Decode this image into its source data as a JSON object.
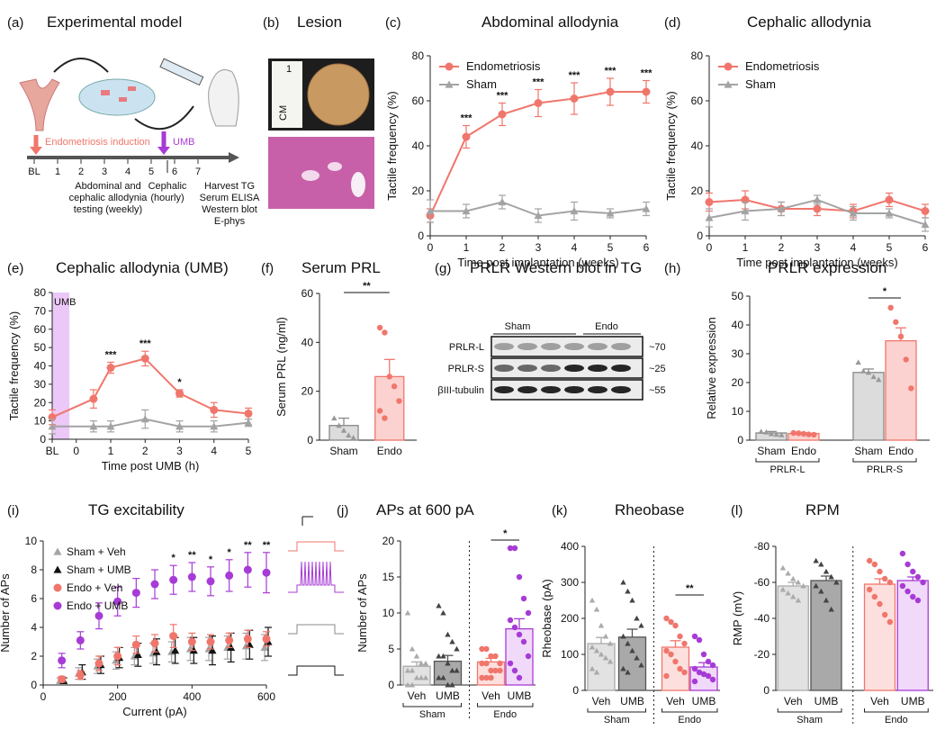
{
  "colors": {
    "endo": "#f0766c",
    "sham": "#a3a3a3",
    "umb": "#a73bd6",
    "black": "#111111",
    "lav": "#ebc8f7",
    "pink": "#f59a94"
  },
  "panels": {
    "a": {
      "label": "(a)",
      "title": "Experimental model",
      "induction": "Endometriosis induction",
      "umb": "UMB",
      "timeline": [
        "BL",
        "1",
        "2",
        "3",
        "4",
        "5",
        "6",
        "7"
      ],
      "testing": [
        "Abdominal and",
        "cephalic allodynia",
        "testing (weekly)"
      ],
      "cephalic": [
        "Cephalic",
        "(hourly)"
      ],
      "harvest": [
        "Harvest TG",
        "Serum ELISA",
        "Western blot",
        "E-phys"
      ]
    },
    "b": {
      "label": "(b)",
      "title": "Lesion",
      "ruler": "CM",
      "ruler_num": "1"
    },
    "c": {
      "label": "(c)",
      "title": "Abdominal allodynia"
    },
    "d": {
      "label": "(d)",
      "title": "Cephalic allodynia"
    },
    "e": {
      "label": "(e)",
      "title": "Cephalic allodynia (UMB)",
      "umb_box": "UMB"
    },
    "f": {
      "label": "(f)",
      "title": "Serum PRL"
    },
    "g": {
      "label": "(g)",
      "title": "PRLR Western blot in TG",
      "groups": [
        "Sham",
        "Endo"
      ],
      "rows": [
        {
          "name": "PRLR-L",
          "kda": "~70"
        },
        {
          "name": "PRLR-S",
          "kda": "~25"
        },
        {
          "name": "βIII-tubulin",
          "kda": "~55"
        }
      ]
    },
    "h": {
      "label": "(h)",
      "title": "PRLR expression"
    },
    "i": {
      "label": "(i)",
      "title": "TG excitability"
    },
    "j": {
      "label": "(j)",
      "title": "APs at 600 pA"
    },
    "k": {
      "label": "(k)",
      "title": "Rheobase"
    },
    "l": {
      "label": "(l)",
      "title": "RPM"
    }
  },
  "chart_data": [
    {
      "id": "c",
      "type": "line",
      "title": "Abdominal allodynia",
      "xlabel": "Time post implantation (weeks)",
      "ylabel": "Tactile frequency (%)",
      "xlim": [
        0,
        6
      ],
      "ylim": [
        0,
        80
      ],
      "xticks": [
        0,
        1,
        2,
        3,
        4,
        5,
        6
      ],
      "yticks": [
        0,
        20,
        40,
        60,
        80
      ],
      "legend": "top-left",
      "series": [
        {
          "name": "Endometriosis",
          "x": [
            0,
            1,
            2,
            3,
            4,
            5,
            6
          ],
          "values": [
            9,
            44,
            54,
            59,
            61,
            64,
            64
          ],
          "err": [
            3,
            5,
            5,
            6,
            7,
            6,
            5
          ]
        },
        {
          "name": "Sham",
          "x": [
            0,
            1,
            2,
            3,
            4,
            5,
            6
          ],
          "values": [
            11,
            11,
            15,
            9,
            11,
            10,
            12
          ],
          "err": [
            5,
            3,
            3,
            3,
            4,
            2,
            3
          ]
        }
      ],
      "annotations": [
        {
          "x": 1,
          "text": "***"
        },
        {
          "x": 2,
          "text": "***"
        },
        {
          "x": 3,
          "text": "***"
        },
        {
          "x": 4,
          "text": "***"
        },
        {
          "x": 5,
          "text": "***"
        },
        {
          "x": 6,
          "text": "***"
        }
      ]
    },
    {
      "id": "d",
      "type": "line",
      "title": "Cephalic allodynia",
      "xlabel": "Time post implantation (weeks)",
      "ylabel": "Tactile frequency (%)",
      "xlim": [
        0,
        6
      ],
      "ylim": [
        0,
        80
      ],
      "xticks": [
        0,
        1,
        2,
        3,
        4,
        5,
        6
      ],
      "yticks": [
        0,
        20,
        40,
        60,
        80
      ],
      "legend": "top-left",
      "series": [
        {
          "name": "Endometriosis",
          "x": [
            0,
            1,
            2,
            3,
            4,
            5,
            6
          ],
          "values": [
            15,
            16,
            12,
            12,
            11,
            16,
            11
          ],
          "err": [
            4,
            4,
            3,
            3,
            3,
            3,
            3
          ]
        },
        {
          "name": "Sham",
          "x": [
            0,
            1,
            2,
            3,
            4,
            5,
            6
          ],
          "values": [
            8,
            11,
            12,
            16,
            10,
            10,
            5
          ],
          "err": [
            4,
            4,
            3,
            2,
            3,
            2,
            3
          ]
        }
      ],
      "annotations": []
    },
    {
      "id": "e",
      "type": "line",
      "title": "Cephalic allodynia (UMB)",
      "xlabel": "Time post UMB (h)",
      "ylabel": "Tactile frequency (%)",
      "xlim": [
        -0.7,
        5
      ],
      "ylim": [
        0,
        80
      ],
      "xticks": [
        -0.7,
        0,
        1,
        2,
        3,
        4,
        5
      ],
      "xticklabels": [
        "BL",
        "0",
        "1",
        "2",
        "3",
        "4",
        "5"
      ],
      "yticks": [
        0,
        10,
        20,
        30,
        40,
        50,
        60,
        70,
        80
      ],
      "series": [
        {
          "name": "Endometriosis",
          "x": [
            -0.7,
            0.5,
            1,
            2,
            3,
            4,
            5
          ],
          "values": [
            12,
            22,
            39,
            44,
            25,
            16,
            14
          ],
          "err": [
            4,
            5,
            3,
            4,
            2,
            4,
            3
          ]
        },
        {
          "name": "Sham",
          "x": [
            -0.7,
            0.5,
            1,
            2,
            3,
            4,
            5
          ],
          "values": [
            7,
            7,
            7,
            11,
            7,
            7,
            9
          ],
          "err": [
            4,
            3,
            3,
            5,
            3,
            3,
            2
          ]
        }
      ],
      "annotations": [
        {
          "x": 1,
          "text": "***"
        },
        {
          "x": 2,
          "text": "***"
        },
        {
          "x": 3,
          "text": "*"
        }
      ]
    },
    {
      "id": "f",
      "type": "bar",
      "title": "Serum PRL",
      "ylabel": "Serum PRL (ng/ml)",
      "ylim": [
        0,
        60
      ],
      "yticks": [
        0,
        20,
        40,
        60
      ],
      "categories": [
        "Sham",
        "Endo"
      ],
      "values": [
        6,
        26
      ],
      "err": [
        3,
        7
      ],
      "points": [
        [
          9,
          6,
          4,
          2,
          1
        ],
        [
          46,
          44,
          26,
          22,
          16,
          12,
          9
        ]
      ],
      "sig": "**"
    },
    {
      "id": "h",
      "type": "bar",
      "title": "PRLR expression",
      "ylabel": "Relative expression",
      "ylim": [
        0,
        50
      ],
      "yticks": [
        0,
        10,
        20,
        30,
        40,
        50
      ],
      "categories": [
        "Sham",
        "Endo",
        "Sham",
        "Endo"
      ],
      "groups": [
        "PRLR-L",
        "PRLR-S"
      ],
      "values": [
        2.5,
        2.3,
        23.5,
        34.5
      ],
      "err": [
        0.5,
        0.3,
        1.2,
        4.5
      ],
      "points": [
        [
          3,
          2.8,
          2.2,
          2,
          1.8
        ],
        [
          2.5,
          2.4,
          2.2,
          2,
          1.9
        ],
        [
          27,
          24,
          23.5,
          22,
          21
        ],
        [
          46,
          41,
          36,
          28,
          18
        ]
      ],
      "sig": "*"
    },
    {
      "id": "i",
      "type": "line",
      "title": "TG excitability",
      "xlabel": "Current (pA)",
      "ylabel": "Number of APs",
      "xlim": [
        0,
        600
      ],
      "ylim": [
        0,
        10
      ],
      "xticks": [
        0,
        200,
        400,
        600
      ],
      "yticks": [
        0,
        2,
        4,
        6,
        8,
        10
      ],
      "legend": "top-left",
      "series": [
        {
          "name": "Sham + Veh",
          "x": [
            50,
            100,
            150,
            200,
            250,
            300,
            350,
            400,
            450,
            500,
            550,
            600
          ],
          "values": [
            0.3,
            0.8,
            1.3,
            1.7,
            2,
            2.2,
            2.3,
            2.5,
            2.5,
            2.6,
            2.7,
            2.6
          ],
          "err": [
            0.2,
            0.4,
            0.5,
            0.6,
            0.6,
            0.7,
            0.7,
            0.8,
            0.8,
            0.8,
            0.9,
            0.9
          ]
        },
        {
          "name": "Sham + UMB",
          "x": [
            50,
            100,
            150,
            200,
            250,
            300,
            350,
            400,
            450,
            500,
            550,
            600
          ],
          "values": [
            0.3,
            0.9,
            1.4,
            1.9,
            2.1,
            2.3,
            2.4,
            2.4,
            2.4,
            2.6,
            2.8,
            3
          ],
          "err": [
            0.2,
            0.5,
            0.6,
            0.7,
            0.8,
            0.9,
            0.9,
            0.9,
            1,
            1,
            1,
            1
          ]
        },
        {
          "name": "Endo + Veh",
          "x": [
            50,
            100,
            150,
            200,
            250,
            300,
            350,
            400,
            450,
            500,
            550,
            600
          ],
          "values": [
            0.4,
            0.7,
            1.5,
            2,
            2.8,
            2.9,
            3.4,
            3,
            3,
            3.1,
            3.2,
            3.2
          ],
          "err": [
            0.2,
            0.3,
            0.5,
            0.6,
            0.6,
            0.6,
            0.8,
            0.6,
            0.5,
            0.5,
            0.6,
            0.5
          ]
        },
        {
          "name": "Endo + UMB",
          "x": [
            50,
            100,
            150,
            200,
            250,
            300,
            350,
            400,
            450,
            500,
            550,
            600
          ],
          "values": [
            1.7,
            3.1,
            4.8,
            5.8,
            6.4,
            7,
            7.3,
            7.5,
            7.2,
            7.6,
            8,
            7.8
          ],
          "err": [
            0.5,
            0.6,
            0.9,
            1,
            1,
            1,
            1,
            1,
            1,
            1.1,
            1.2,
            1.4
          ]
        }
      ],
      "annotations": [
        {
          "x": 350,
          "text": "*"
        },
        {
          "x": 400,
          "text": "**"
        },
        {
          "x": 450,
          "text": "*"
        },
        {
          "x": 500,
          "text": "*"
        },
        {
          "x": 550,
          "text": "**"
        },
        {
          "x": 600,
          "text": "**"
        }
      ]
    },
    {
      "id": "j",
      "type": "bar",
      "title": "APs at 600 pA",
      "ylabel": "Number of APs",
      "ylim": [
        0,
        20
      ],
      "yticks": [
        0,
        5,
        10,
        15,
        20
      ],
      "categories": [
        "Veh",
        "UMB",
        "Veh",
        "UMB"
      ],
      "groups": [
        "Sham",
        "Endo"
      ],
      "values": [
        2.6,
        3.3,
        3.2,
        7.8
      ],
      "err": [
        0.6,
        0.8,
        0.5,
        1.4
      ],
      "points": [
        [
          10,
          5,
          4,
          3,
          3,
          2,
          2,
          1,
          1,
          1,
          0,
          0
        ],
        [
          11,
          10,
          7,
          6,
          5,
          4,
          4,
          3,
          2,
          2,
          1,
          1,
          0,
          0
        ],
        [
          5,
          5,
          4,
          4,
          3,
          3,
          3,
          2,
          2,
          2,
          1,
          1,
          1
        ],
        [
          19,
          19,
          15,
          12,
          10,
          9,
          8,
          7,
          6,
          4,
          3,
          2,
          1
        ]
      ],
      "sig": "*"
    },
    {
      "id": "k",
      "type": "bar",
      "title": "Rheobase",
      "ylabel": "Rheobase (pA)",
      "ylim": [
        0,
        400
      ],
      "yticks": [
        0,
        100,
        200,
        300,
        400
      ],
      "categories": [
        "Veh",
        "UMB",
        "Veh",
        "UMB"
      ],
      "groups": [
        "Sham",
        "Endo"
      ],
      "values": [
        130,
        148,
        120,
        65
      ],
      "err": [
        17,
        22,
        18,
        12
      ],
      "points": [
        [
          250,
          225,
          180,
          150,
          130,
          120,
          110,
          100,
          90,
          80,
          60,
          50
        ],
        [
          300,
          275,
          250,
          200,
          180,
          150,
          130,
          110,
          90,
          70,
          60,
          50
        ],
        [
          200,
          190,
          180,
          150,
          130,
          110,
          100,
          80,
          60,
          50,
          40
        ],
        [
          150,
          140,
          100,
          80,
          70,
          60,
          50,
          45,
          40,
          30,
          25
        ]
      ],
      "sig": "**"
    },
    {
      "id": "l",
      "type": "bar",
      "title": "RPM",
      "ylabel": "RMP (mV)",
      "ylim": [
        0,
        -80
      ],
      "yticks": [
        0,
        -20,
        -40,
        -60,
        -80
      ],
      "yticklabels": [
        "0",
        "-20",
        "-40",
        "-60",
        "-80"
      ],
      "categories": [
        "Veh",
        "UMB",
        "Veh",
        "UMB"
      ],
      "groups": [
        "Sham",
        "Endo"
      ],
      "values": [
        -58,
        -61,
        -59,
        -61
      ],
      "err": [
        2,
        2.5,
        3,
        2
      ],
      "points": [
        [
          -68,
          -65,
          -62,
          -60,
          -58,
          -56,
          -54,
          -52,
          -50
        ],
        [
          -72,
          -70,
          -66,
          -63,
          -60,
          -58,
          -55,
          -50,
          -45
        ],
        [
          -72,
          -70,
          -66,
          -62,
          -60,
          -56,
          -52,
          -48,
          -42,
          -38
        ],
        [
          -76,
          -70,
          -66,
          -63,
          -60,
          -58,
          -55,
          -52,
          -50
        ]
      ]
    }
  ]
}
